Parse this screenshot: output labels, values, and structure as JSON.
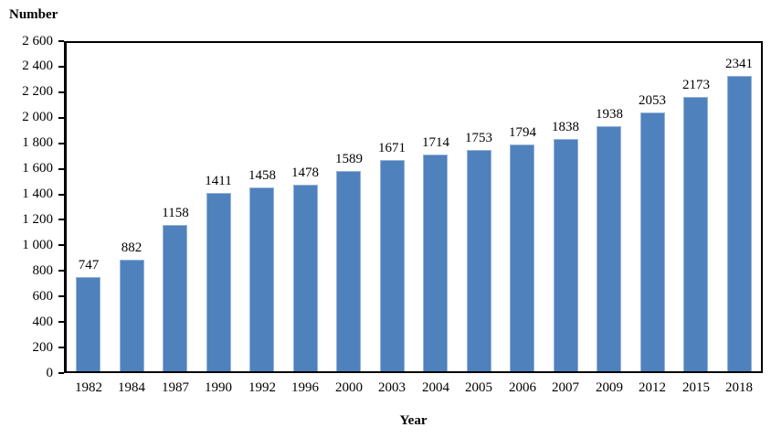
{
  "chart_data": {
    "type": "bar",
    "title": "",
    "ylabel": "Number",
    "xlabel": "Year",
    "categories": [
      "1982",
      "1984",
      "1987",
      "1990",
      "1992",
      "1996",
      "2000",
      "2003",
      "2004",
      "2005",
      "2006",
      "2007",
      "2009",
      "2012",
      "2015",
      "2018"
    ],
    "values": [
      747,
      882,
      1158,
      1411,
      1458,
      1478,
      1589,
      1671,
      1714,
      1753,
      1794,
      1838,
      1938,
      2053,
      2173,
      2341
    ],
    "data_labels_shown": true,
    "ylim": [
      0,
      2600
    ],
    "ytick_values": [
      0,
      200,
      400,
      600,
      800,
      1000,
      1200,
      1400,
      1600,
      1800,
      2000,
      2200,
      2400,
      2600
    ],
    "ytick_labels": [
      "0",
      "200",
      "400",
      "600",
      "800",
      "1 000",
      "1 200",
      "1 400",
      "1 600",
      "1 800",
      "2 000",
      "2 200",
      "2 400",
      "2 600"
    ],
    "grid": false,
    "legend": "none",
    "bar_color": "#4f81bd",
    "bar_border_color": "#95b3d7",
    "frame_color": "#000000",
    "background_color": "#ffffff"
  }
}
